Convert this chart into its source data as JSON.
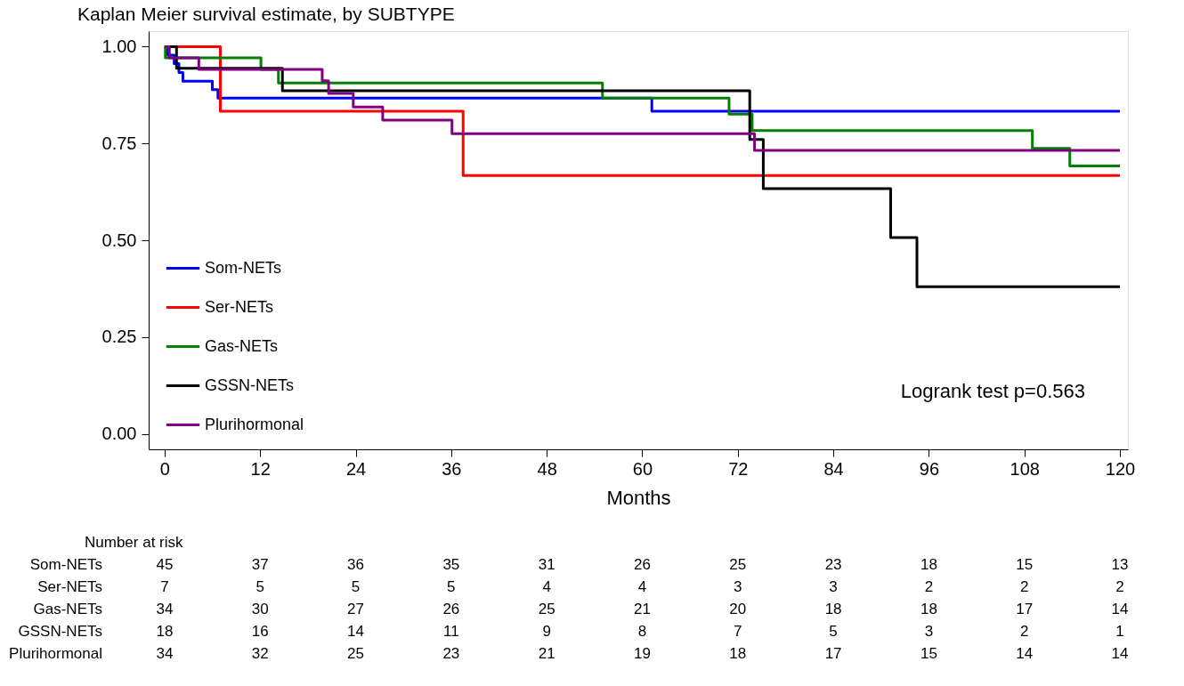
{
  "chart_data": {
    "type": "step",
    "title": "Kaplan Meier survival estimate, by SUBTYPE",
    "xlabel": "Months",
    "xlim": [
      -2,
      121
    ],
    "xticks": [
      0,
      12,
      24,
      36,
      48,
      60,
      72,
      84,
      96,
      108,
      120
    ],
    "ylim": [
      -0.04,
      1.04
    ],
    "yticks": [
      {
        "value": 0,
        "label": "0.00"
      },
      0.25,
      {
        "value": 0.5,
        "label": "0.50"
      },
      0.75,
      {
        "value": 1,
        "label": "1.00"
      }
    ],
    "grid": false,
    "legend": "bottom left",
    "line_style": "solid",
    "marker": "none",
    "series": [
      {
        "name": "Som-NETs",
        "color": "#0000ff",
        "x": [
          0,
          0.4,
          1.2,
          1.8,
          2.3,
          6.0,
          6.7,
          61.2,
          120
        ],
        "values": [
          1.0,
          0.978,
          0.956,
          0.933,
          0.911,
          0.889,
          0.867,
          0.833,
          0.833
        ]
      },
      {
        "name": "Ser-NETs",
        "color": "#ff0000",
        "x": [
          0,
          7.0,
          37.5,
          120
        ],
        "values": [
          1.0,
          0.833,
          0.667,
          0.667
        ]
      },
      {
        "name": "Gas-NETs",
        "color": "#008000",
        "x": [
          0,
          0.1,
          12.1,
          14.3,
          55.0,
          70.9,
          73.8,
          109.0,
          113.7,
          120
        ],
        "values": [
          1.0,
          0.971,
          0.941,
          0.906,
          0.867,
          0.826,
          0.783,
          0.737,
          0.692,
          0.692
        ]
      },
      {
        "name": "GSSN-NETs",
        "color": "#000000",
        "x": [
          0,
          1.5,
          14.8,
          73.5,
          75.2,
          91.2,
          94.5,
          120
        ],
        "values": [
          1.0,
          0.944,
          0.886,
          0.76,
          0.633,
          0.507,
          0.38,
          0.38
        ]
      },
      {
        "name": "Plurihormonal",
        "color": "#800080",
        "x": [
          0,
          0.6,
          4.3,
          19.8,
          20.6,
          23.7,
          27.4,
          36.1,
          74.1,
          120
        ],
        "values": [
          1.0,
          0.971,
          0.941,
          0.912,
          0.879,
          0.844,
          0.81,
          0.775,
          0.732,
          0.732
        ]
      }
    ],
    "annotations": [
      "Logrank test p=0.563",
      "Number at risk",
      "Som-NETs",
      "45 37 36 35 31 26 25 23 18 15 13",
      "Ser-NETs",
      "7 5 5 5 4 4 3 3 2 2 2",
      "Gas-NETs",
      "34 30 27 26 25 21 20 18 18 17 14",
      "GSSN-NETs",
      "18 16 14 11 9 8 7 5 3 2 1",
      "Plurihormonal",
      "34 32 25 23 21 19 18 17 15 14 14"
    ]
  }
}
